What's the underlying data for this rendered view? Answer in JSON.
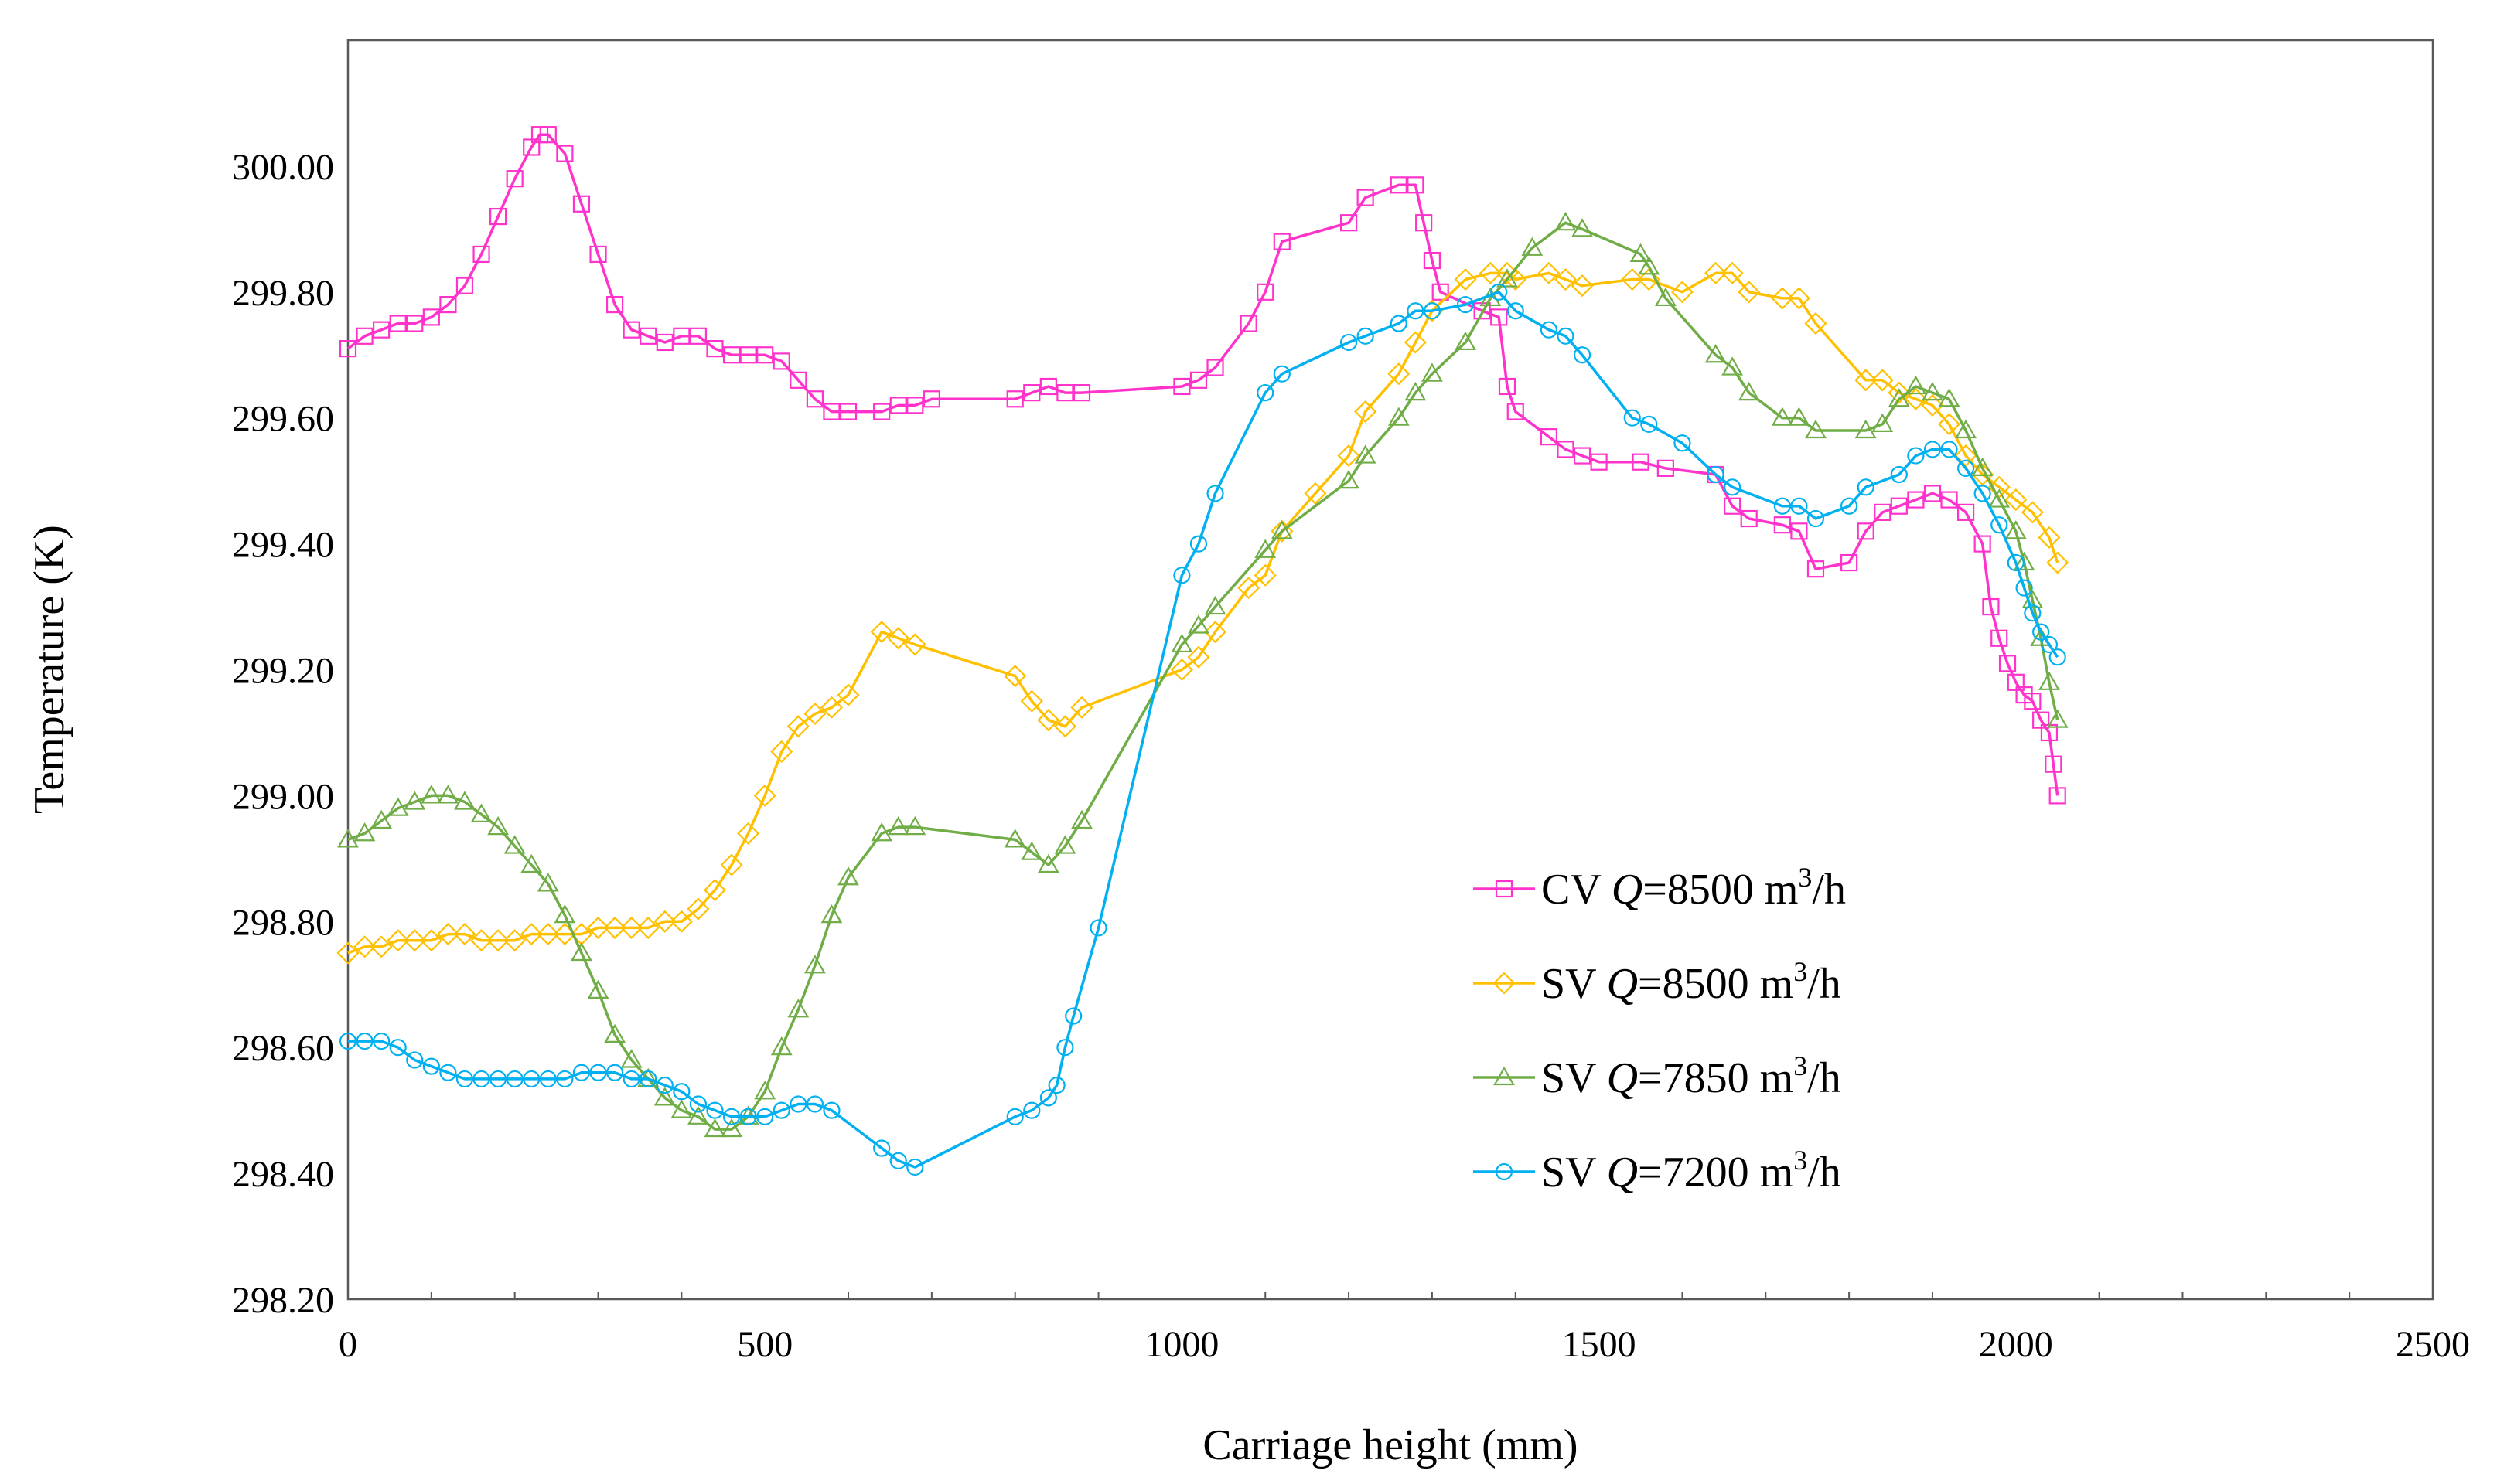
{
  "chart_data": {
    "type": "line",
    "title": "",
    "xlabel": "Carriage height (mm)",
    "ylabel": "Temperature (K)",
    "xlim": [
      0,
      2500
    ],
    "ylim": [
      298.2,
      300.2
    ],
    "x_ticks": [
      0,
      500,
      1000,
      1500,
      2000,
      2500
    ],
    "x_tick_labels": [
      "0",
      "500",
      "1000",
      "1500",
      "2000",
      "2500"
    ],
    "y_ticks": [
      298.2,
      298.4,
      298.6,
      298.8,
      299.0,
      299.2,
      299.4,
      299.6,
      299.8,
      300.0
    ],
    "y_tick_labels": [
      "298.20",
      "298.40",
      "298.60",
      "298.80",
      "299.00",
      "299.20",
      "299.40",
      "299.60",
      "299.80",
      "300.00"
    ],
    "grid": false,
    "legend_position": "right-middle",
    "series": [
      {
        "name": "CV Q=8500 m3/h",
        "legend_prefix": "CV ",
        "legend_q": "Q",
        "legend_value": "=8500",
        "legend_unit": " m",
        "legend_sup": "3",
        "legend_suffix": "/h",
        "color": "#ff33cc",
        "marker": "square",
        "x": [
          0,
          20,
          40,
          60,
          80,
          100,
          120,
          140,
          160,
          180,
          200,
          220,
          230,
          240,
          260,
          280,
          300,
          320,
          340,
          360,
          380,
          400,
          420,
          440,
          460,
          480,
          500,
          520,
          540,
          560,
          580,
          600,
          640,
          660,
          680,
          700,
          800,
          820,
          840,
          860,
          880,
          1000,
          1020,
          1040,
          1080,
          1100,
          1120,
          1200,
          1220,
          1260,
          1280,
          1290,
          1300,
          1310,
          1360,
          1380,
          1390,
          1400,
          1440,
          1460,
          1480,
          1500,
          1550,
          1580,
          1640,
          1660,
          1680,
          1720,
          1740,
          1760,
          1800,
          1820,
          1840,
          1860,
          1880,
          1900,
          1920,
          1940,
          1960,
          1970,
          1980,
          1990,
          2000,
          2010,
          2020,
          2030,
          2040,
          2045,
          2050
        ],
        "values": [
          299.71,
          299.73,
          299.74,
          299.75,
          299.75,
          299.76,
          299.78,
          299.81,
          299.86,
          299.92,
          299.98,
          300.03,
          300.05,
          300.05,
          300.02,
          299.94,
          299.86,
          299.78,
          299.74,
          299.73,
          299.72,
          299.73,
          299.73,
          299.71,
          299.7,
          299.7,
          299.7,
          299.69,
          299.66,
          299.63,
          299.61,
          299.61,
          299.61,
          299.62,
          299.62,
          299.63,
          299.63,
          299.64,
          299.65,
          299.64,
          299.64,
          299.65,
          299.66,
          299.68,
          299.75,
          299.8,
          299.88,
          299.91,
          299.95,
          299.97,
          299.97,
          299.91,
          299.85,
          299.8,
          299.77,
          299.76,
          299.65,
          299.61,
          299.57,
          299.55,
          299.54,
          299.53,
          299.53,
          299.52,
          299.51,
          299.46,
          299.44,
          299.43,
          299.42,
          299.36,
          299.37,
          299.42,
          299.45,
          299.46,
          299.47,
          299.48,
          299.47,
          299.45,
          299.4,
          299.3,
          299.25,
          299.21,
          299.18,
          299.16,
          299.15,
          299.12,
          299.1,
          299.05,
          299.0
        ]
      },
      {
        "name": "SV Q=8500 m3/h",
        "legend_prefix": "SV ",
        "legend_q": "Q",
        "legend_value": "=8500",
        "legend_unit": " m",
        "legend_sup": "3",
        "legend_suffix": "/h",
        "color": "#ffc000",
        "marker": "diamond",
        "x": [
          0,
          20,
          40,
          60,
          80,
          100,
          120,
          140,
          160,
          180,
          200,
          220,
          240,
          260,
          280,
          300,
          320,
          340,
          360,
          380,
          400,
          420,
          440,
          460,
          480,
          500,
          520,
          540,
          560,
          580,
          600,
          640,
          660,
          680,
          800,
          820,
          840,
          860,
          880,
          1000,
          1020,
          1040,
          1080,
          1100,
          1120,
          1160,
          1200,
          1220,
          1260,
          1280,
          1300,
          1340,
          1370,
          1390,
          1400,
          1440,
          1460,
          1480,
          1540,
          1560,
          1600,
          1640,
          1660,
          1680,
          1720,
          1740,
          1760,
          1820,
          1840,
          1860,
          1880,
          1900,
          1920,
          1940,
          1960,
          1980,
          2000,
          2020,
          2040,
          2050
        ],
        "values": [
          298.75,
          298.76,
          298.76,
          298.77,
          298.77,
          298.77,
          298.78,
          298.78,
          298.77,
          298.77,
          298.77,
          298.78,
          298.78,
          298.78,
          298.78,
          298.79,
          298.79,
          298.79,
          298.79,
          298.8,
          298.8,
          298.82,
          298.85,
          298.89,
          298.94,
          299.0,
          299.07,
          299.11,
          299.13,
          299.14,
          299.16,
          299.26,
          299.25,
          299.24,
          299.19,
          299.15,
          299.12,
          299.11,
          299.14,
          299.2,
          299.22,
          299.26,
          299.33,
          299.35,
          299.42,
          299.48,
          299.54,
          299.61,
          299.67,
          299.72,
          299.77,
          299.82,
          299.83,
          299.83,
          299.82,
          299.83,
          299.82,
          299.81,
          299.82,
          299.82,
          299.8,
          299.83,
          299.83,
          299.8,
          299.79,
          299.79,
          299.75,
          299.66,
          299.66,
          299.64,
          299.63,
          299.62,
          299.59,
          299.54,
          299.51,
          299.49,
          299.47,
          299.45,
          299.41,
          299.37
        ]
      },
      {
        "name": "SV Q=7850 m3/h",
        "legend_prefix": "SV ",
        "legend_q": "Q",
        "legend_value": "=7850",
        "legend_unit": " m",
        "legend_sup": "3",
        "legend_suffix": "/h",
        "color": "#70ad47",
        "marker": "triangle",
        "x": [
          0,
          20,
          40,
          60,
          80,
          100,
          120,
          140,
          160,
          180,
          200,
          220,
          240,
          260,
          280,
          300,
          320,
          340,
          360,
          380,
          400,
          420,
          440,
          460,
          480,
          500,
          520,
          540,
          560,
          580,
          600,
          640,
          660,
          680,
          800,
          820,
          840,
          860,
          880,
          1000,
          1020,
          1040,
          1100,
          1120,
          1200,
          1220,
          1260,
          1280,
          1300,
          1340,
          1370,
          1390,
          1420,
          1460,
          1480,
          1550,
          1560,
          1580,
          1640,
          1660,
          1680,
          1720,
          1740,
          1760,
          1820,
          1840,
          1860,
          1880,
          1900,
          1920,
          1940,
          1960,
          1980,
          2000,
          2010,
          2020,
          2030,
          2040,
          2050
        ],
        "values": [
          298.93,
          298.94,
          298.96,
          298.98,
          298.99,
          299.0,
          299.0,
          298.99,
          298.97,
          298.95,
          298.92,
          298.89,
          298.86,
          298.81,
          298.75,
          298.69,
          298.62,
          298.58,
          298.55,
          298.52,
          298.5,
          298.49,
          298.47,
          298.47,
          298.49,
          298.53,
          298.6,
          298.66,
          298.73,
          298.81,
          298.87,
          298.94,
          298.95,
          298.95,
          298.93,
          298.91,
          298.89,
          298.92,
          298.96,
          299.24,
          299.27,
          299.3,
          299.39,
          299.42,
          299.5,
          299.54,
          299.6,
          299.64,
          299.67,
          299.72,
          299.79,
          299.82,
          299.87,
          299.91,
          299.9,
          299.86,
          299.84,
          299.79,
          299.7,
          299.68,
          299.64,
          299.6,
          299.6,
          299.58,
          299.58,
          299.59,
          299.63,
          299.65,
          299.64,
          299.63,
          299.58,
          299.52,
          299.47,
          299.42,
          299.37,
          299.31,
          299.25,
          299.18,
          299.12
        ]
      },
      {
        "name": "SV Q=7200 m3/h",
        "legend_prefix": "SV ",
        "legend_q": "Q",
        "legend_value": "=7200",
        "legend_unit": " m",
        "legend_sup": "3",
        "legend_suffix": "/h",
        "color": "#00b0f0",
        "marker": "circle",
        "x": [
          0,
          20,
          40,
          60,
          80,
          100,
          120,
          140,
          160,
          180,
          200,
          220,
          240,
          260,
          280,
          300,
          320,
          340,
          360,
          380,
          400,
          420,
          440,
          460,
          480,
          500,
          520,
          540,
          560,
          580,
          640,
          660,
          680,
          800,
          820,
          840,
          850,
          860,
          870,
          900,
          1000,
          1020,
          1040,
          1100,
          1120,
          1200,
          1220,
          1260,
          1280,
          1300,
          1340,
          1380,
          1400,
          1440,
          1460,
          1480,
          1540,
          1560,
          1600,
          1640,
          1660,
          1720,
          1740,
          1760,
          1800,
          1820,
          1860,
          1880,
          1900,
          1920,
          1940,
          1960,
          1980,
          2000,
          2010,
          2020,
          2030,
          2040,
          2050
        ],
        "values": [
          298.61,
          298.61,
          298.61,
          298.6,
          298.58,
          298.57,
          298.56,
          298.55,
          298.55,
          298.55,
          298.55,
          298.55,
          298.55,
          298.55,
          298.56,
          298.56,
          298.56,
          298.55,
          298.55,
          298.54,
          298.53,
          298.51,
          298.5,
          298.49,
          298.49,
          298.49,
          298.5,
          298.51,
          298.51,
          298.5,
          298.44,
          298.42,
          298.41,
          298.49,
          298.5,
          298.52,
          298.54,
          298.6,
          298.65,
          298.79,
          299.35,
          299.4,
          299.48,
          299.64,
          299.67,
          299.72,
          299.73,
          299.75,
          299.77,
          299.77,
          299.78,
          299.8,
          299.77,
          299.74,
          299.73,
          299.7,
          299.6,
          299.59,
          299.56,
          299.51,
          299.49,
          299.46,
          299.46,
          299.44,
          299.46,
          299.49,
          299.51,
          299.54,
          299.55,
          299.55,
          299.52,
          299.48,
          299.43,
          299.37,
          299.33,
          299.29,
          299.26,
          299.24,
          299.22
        ]
      }
    ]
  }
}
